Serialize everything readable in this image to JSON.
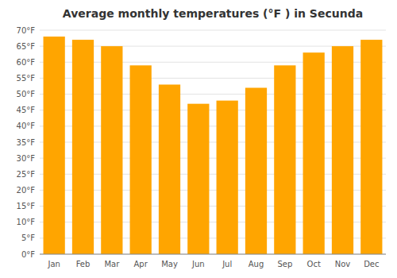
{
  "chart_data": {
    "type": "bar",
    "title": "Average monthly temperatures (°F ) in Secunda",
    "categories": [
      "Jan",
      "Feb",
      "Mar",
      "Apr",
      "May",
      "Jun",
      "Jul",
      "Aug",
      "Sep",
      "Oct",
      "Nov",
      "Dec"
    ],
    "values": [
      68,
      67,
      65,
      59,
      53,
      47,
      48,
      52,
      59,
      63,
      65,
      67
    ],
    "color": "#FFA500",
    "ylim": [
      0,
      70
    ],
    "yticks": [
      {
        "value": 0,
        "label": "0°F"
      },
      {
        "value": 5,
        "label": "5°F"
      },
      {
        "value": 10,
        "label": "10°F"
      },
      {
        "value": 15,
        "label": "15°F"
      },
      {
        "value": 20,
        "label": "20°F"
      },
      {
        "value": 25,
        "label": "25°F"
      },
      {
        "value": 30,
        "label": "30°F"
      },
      {
        "value": 35,
        "label": "35°F"
      },
      {
        "value": 40,
        "label": "40°F"
      },
      {
        "value": 45,
        "label": "45°F"
      },
      {
        "value": 50,
        "label": "50°F"
      },
      {
        "value": 55,
        "label": "55°F"
      },
      {
        "value": 60,
        "label": "60°F"
      },
      {
        "value": 65,
        "label": "65°F"
      },
      {
        "value": 70,
        "label": "70°F"
      }
    ],
    "grid": true
  }
}
